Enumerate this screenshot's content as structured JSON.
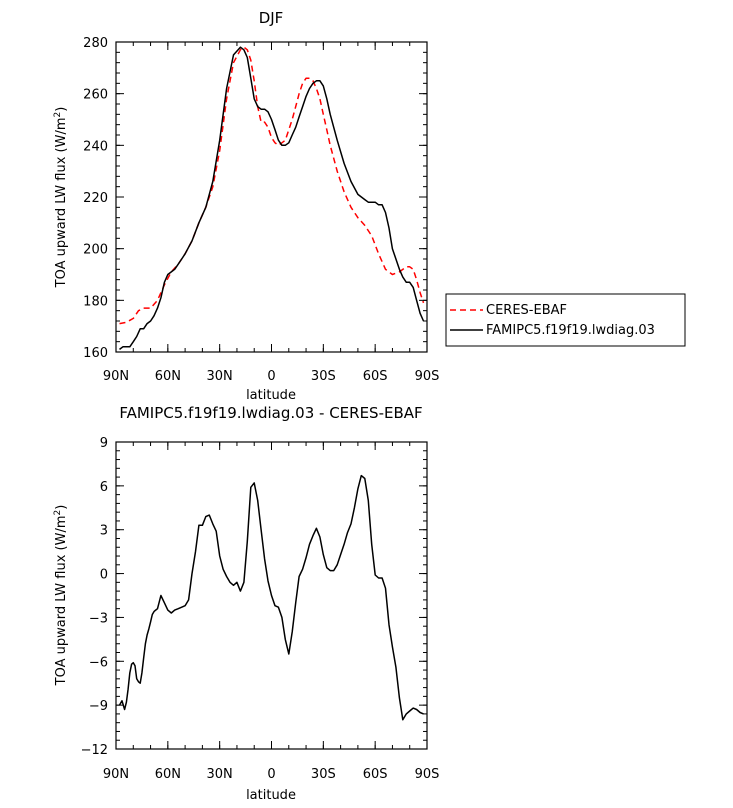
{
  "chart_data": [
    {
      "type": "line",
      "title": "DJF",
      "xlabel": "latitude",
      "ylabel": "TOA upward LW flux (W/m",
      "ylabel_sup": "2",
      "ylabel_tail": ")",
      "xlim": [
        90,
        -90
      ],
      "ylim": [
        160,
        280
      ],
      "xtick_values": [
        90,
        60,
        30,
        0,
        -30,
        -60,
        -90
      ],
      "xtick_labels": [
        "90N",
        "60N",
        "30N",
        "0",
        "30S",
        "60S",
        "90S"
      ],
      "ytick_values": [
        160,
        180,
        200,
        220,
        240,
        260,
        280
      ],
      "ytick_labels": [
        "160",
        "180",
        "200",
        "220",
        "240",
        "260",
        "280"
      ],
      "legend_position": "right",
      "series": [
        {
          "name": "CERES-EBAF",
          "color": "#ff0000",
          "style": "dashed",
          "x": [
            88,
            84,
            80,
            77,
            74,
            70,
            66,
            62,
            58,
            54,
            50,
            46,
            42,
            38,
            34,
            30,
            26,
            22,
            18,
            16,
            14,
            12,
            10,
            8,
            6,
            4,
            2,
            0,
            -2,
            -4,
            -6,
            -8,
            -10,
            -12,
            -14,
            -16,
            -18,
            -20,
            -22,
            -24,
            -26,
            -28,
            -30,
            -32,
            -34,
            -38,
            -42,
            -46,
            -50,
            -54,
            -58,
            -62,
            -66,
            -70,
            -74,
            -78,
            -80,
            -82,
            -84,
            -86,
            -88
          ],
          "y": [
            171,
            171.5,
            173,
            176,
            177,
            177,
            180,
            186,
            191,
            194,
            198,
            203,
            210,
            216,
            224,
            238,
            258,
            272,
            277,
            278,
            277,
            273,
            265,
            255,
            249,
            249,
            247,
            243,
            241,
            240,
            241,
            242,
            246,
            250,
            255,
            260,
            264,
            266,
            266,
            265,
            262,
            258,
            252,
            246,
            240,
            230,
            222,
            216,
            212,
            209,
            205,
            198,
            192,
            190,
            191,
            193,
            193,
            192,
            188,
            183,
            179
          ]
        },
        {
          "name": "FAMIPC5.f19f19.lwdiag.03",
          "color": "#000000",
          "style": "solid",
          "x": [
            88,
            86,
            84,
            82,
            80,
            78,
            76,
            74,
            72,
            70,
            68,
            66,
            64,
            62,
            60,
            58,
            56,
            54,
            52,
            50,
            46,
            42,
            38,
            34,
            30,
            26,
            22,
            18,
            16,
            14,
            12,
            10,
            8,
            6,
            4,
            2,
            0,
            -2,
            -4,
            -6,
            -8,
            -10,
            -12,
            -14,
            -16,
            -18,
            -20,
            -22,
            -24,
            -26,
            -28,
            -30,
            -32,
            -34,
            -38,
            -42,
            -46,
            -50,
            -54,
            -56,
            -58,
            -60,
            -62,
            -64,
            -66,
            -68,
            -70,
            -74,
            -76,
            -78,
            -80,
            -82,
            -84,
            -86,
            -88
          ],
          "y": [
            161,
            162,
            162,
            162,
            164,
            166,
            169,
            169,
            171,
            172,
            174,
            177,
            181,
            187,
            190,
            191,
            192,
            194,
            196,
            198,
            203,
            210,
            216,
            226,
            242,
            262,
            275,
            278,
            277,
            274,
            266,
            258,
            255,
            254,
            254,
            253,
            250,
            246,
            242,
            240,
            240,
            241,
            244,
            247,
            251,
            255,
            259,
            262,
            264,
            265,
            265,
            263,
            258,
            252,
            242,
            233,
            226,
            221,
            219,
            218,
            218,
            218,
            217,
            217,
            214,
            208,
            200,
            192,
            189,
            187,
            187,
            185,
            180,
            175,
            172
          ]
        }
      ]
    },
    {
      "type": "line",
      "title": "FAMIPC5.f19f19.lwdiag.03 - CERES-EBAF",
      "xlabel": "latitude",
      "ylabel": "TOA upward LW flux (W/m",
      "ylabel_sup": "2",
      "ylabel_tail": ")",
      "xlim": [
        90,
        -90
      ],
      "ylim": [
        -12,
        9
      ],
      "xtick_values": [
        90,
        60,
        30,
        0,
        -30,
        -60,
        -90
      ],
      "xtick_labels": [
        "90N",
        "60N",
        "30N",
        "0",
        "30S",
        "60S",
        "90S"
      ],
      "ytick_values": [
        -12,
        -9,
        -6,
        -3,
        0,
        3,
        6,
        9
      ],
      "ytick_labels": [
        "−12",
        "−9",
        "−6",
        "−3",
        "0",
        "3",
        "6",
        "9"
      ],
      "series": [
        {
          "name": "",
          "color": "#000000",
          "style": "solid",
          "x": [
            88,
            86.5,
            85,
            84,
            83,
            82,
            81,
            80,
            79,
            78,
            77,
            76,
            75,
            74,
            73,
            72,
            71,
            70,
            69,
            68,
            67,
            66,
            64,
            62,
            60,
            58,
            56,
            54,
            52,
            50,
            48,
            46,
            44,
            42,
            40,
            38,
            36,
            34,
            32,
            30,
            28,
            26,
            24,
            22,
            20,
            18,
            16,
            14,
            12,
            10,
            8,
            6,
            4,
            2,
            0,
            -2,
            -4,
            -6,
            -8,
            -10,
            -12,
            -14,
            -16,
            -18,
            -20,
            -22,
            -24,
            -26,
            -28,
            -30,
            -32,
            -34,
            -36,
            -38,
            -40,
            -42,
            -44,
            -46,
            -48,
            -50,
            -52,
            -54,
            -56,
            -58,
            -60,
            -62,
            -64,
            -66,
            -68,
            -70,
            -72,
            -74,
            -76,
            -78,
            -80,
            -82,
            -84,
            -86,
            -88
          ],
          "y": [
            -9.0,
            -8.7,
            -9.3,
            -8.8,
            -7.9,
            -6.8,
            -6.2,
            -6.1,
            -6.3,
            -7.2,
            -7.4,
            -7.5,
            -6.8,
            -5.8,
            -4.8,
            -4.2,
            -3.8,
            -3.3,
            -2.8,
            -2.6,
            -2.5,
            -2.4,
            -1.5,
            -2.0,
            -2.5,
            -2.7,
            -2.5,
            -2.4,
            -2.3,
            -2.2,
            -1.8,
            0.0,
            1.5,
            3.3,
            3.3,
            3.9,
            4.0,
            3.4,
            2.9,
            1.2,
            0.3,
            -0.2,
            -0.6,
            -0.8,
            -0.6,
            -1.2,
            -0.6,
            2.2,
            5.9,
            6.2,
            5.0,
            3.0,
            1.0,
            -0.5,
            -1.5,
            -2.2,
            -2.3,
            -3.0,
            -4.5,
            -5.5,
            -4.0,
            -2.0,
            -0.2,
            0.3,
            1.1,
            2.0,
            2.6,
            3.1,
            2.5,
            1.3,
            0.4,
            0.2,
            0.2,
            0.6,
            1.3,
            2.0,
            2.8,
            3.4,
            4.5,
            5.8,
            6.7,
            6.5,
            5.0,
            2.0,
            -0.1,
            -0.3,
            -0.3,
            -1.0,
            -3.5,
            -5.0,
            -6.4,
            -8.5,
            -10.0,
            -9.6,
            -9.4,
            -9.2,
            -9.3,
            -9.5,
            -9.6
          ]
        }
      ]
    }
  ]
}
